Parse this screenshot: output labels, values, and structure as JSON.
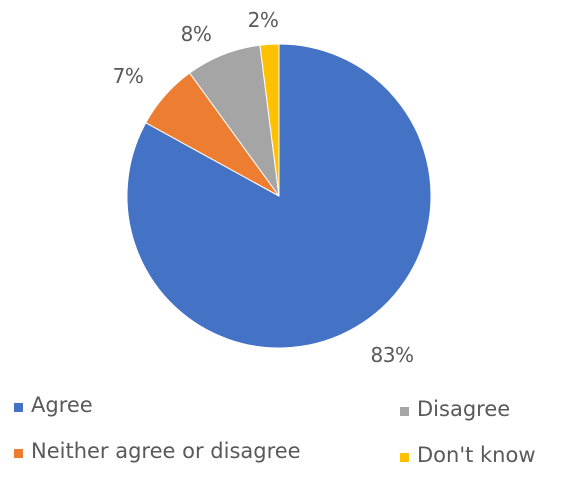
{
  "chart_data": {
    "type": "pie",
    "title": "",
    "categories": [
      "Agree",
      "Neither agree or disagree",
      "Disagree",
      "Don't know"
    ],
    "values": [
      83,
      7,
      8,
      2
    ],
    "data_labels": [
      "83%",
      "7%",
      "8%",
      "2%"
    ],
    "colors": [
      "#4472C4",
      "#ED7D31",
      "#A5A5A5",
      "#FFC000"
    ],
    "start_angle_deg": 0,
    "direction": "clockwise",
    "legend": {
      "position": "bottom",
      "entries": [
        "Agree",
        "Disagree",
        "Neither agree or disagree",
        "Don't know"
      ]
    }
  }
}
